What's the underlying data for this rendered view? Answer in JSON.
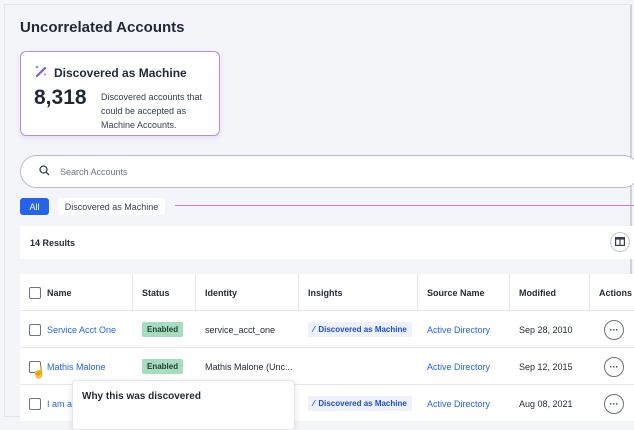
{
  "page": {
    "title": "Uncorrelated Accounts"
  },
  "card": {
    "icon": "magic-wand-icon",
    "title": "Discovered as Machine",
    "count": "8,318",
    "description": "Discovered accounts that could be accepted as Machine Accounts.",
    "accent": "#b98ae0"
  },
  "search": {
    "placeholder": "Search Accounts",
    "value": ""
  },
  "filters": [
    {
      "label": "All",
      "active": true
    },
    {
      "label": "Discovered as Machine",
      "active": false
    }
  ],
  "results": {
    "label": "14 Results"
  },
  "table": {
    "columns": [
      "Name",
      "Status",
      "Identity",
      "Insights",
      "Source Name",
      "Modified",
      "Actions"
    ],
    "rows": [
      {
        "name": "Service Acct One",
        "status": "Enabled",
        "identity": "service_acct_one",
        "insight": "Discovered as Machine",
        "source": "Active Directory",
        "modified": "Sep 28, 2010"
      },
      {
        "name": "Mathis Malone",
        "status": "Enabled",
        "identity": "Mathis Malone (Unc...",
        "insight": "",
        "source": "Active Directory",
        "modified": "Sep 12, 2015"
      },
      {
        "name": "I am a",
        "status": "",
        "identity": "",
        "insight": "Discovered as Machine",
        "source": "Active Directory",
        "modified": "Aug 08, 2021"
      }
    ]
  },
  "popover": {
    "title": "Why this was discovered"
  },
  "colors": {
    "primary": "#2563eb",
    "enabled_badge": "#a7dcc0"
  }
}
